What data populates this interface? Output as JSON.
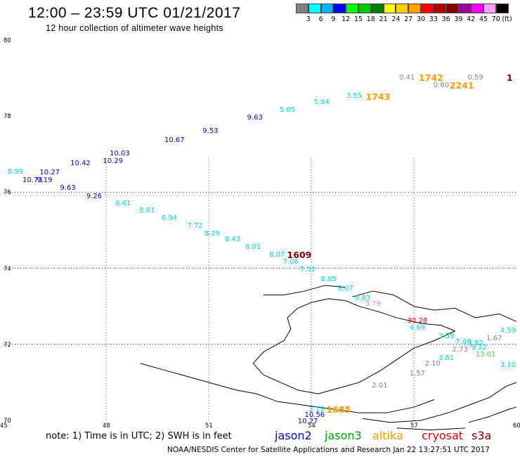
{
  "header": {
    "title": "12:00 – 23:59 UTC 01/21/2017",
    "subtitle": "12 hour collection of altimeter wave heights"
  },
  "legend": {
    "unit": "(ft)",
    "swatches": [
      {
        "color": "#808080",
        "label": "3"
      },
      {
        "color": "#00ffff",
        "label": "6"
      },
      {
        "color": "#00b4ff",
        "label": "9"
      },
      {
        "color": "#0000ff",
        "label": "12"
      },
      {
        "color": "#00ff00",
        "label": "15"
      },
      {
        "color": "#00c800",
        "label": "18"
      },
      {
        "color": "#008000",
        "label": "21"
      },
      {
        "color": "#ffff00",
        "label": "24"
      },
      {
        "color": "#ffd000",
        "label": "27"
      },
      {
        "color": "#ffa000",
        "label": "30"
      },
      {
        "color": "#ff0000",
        "label": "33"
      },
      {
        "color": "#b40000",
        "label": "36"
      },
      {
        "color": "#800000",
        "label": "39"
      },
      {
        "color": "#a000a0",
        "label": "42"
      },
      {
        "color": "#ff00ff",
        "label": "45"
      },
      {
        "color": "#ffa0ff",
        "label": "70"
      },
      {
        "color": "#000000",
        "label": ""
      }
    ]
  },
  "axes": {
    "lon_min": 45,
    "lon_max": 60,
    "lat_min": 70,
    "lat_max": 80,
    "lon_ticks": [
      "45",
      "48",
      "51",
      "54",
      "57",
      "60"
    ],
    "lat_ticks": [
      "80",
      "78",
      "76",
      "74",
      "72",
      "70"
    ],
    "grid_lons": [
      48,
      51,
      54,
      57
    ],
    "grid_lats": [
      76,
      74,
      72
    ]
  },
  "colors": {
    "gray": "#808080",
    "cyan": "#00d0e8",
    "blue": "#0000c8",
    "green": "#40d040",
    "orange": "#ff9900",
    "darkred": "#800000",
    "red": "#e00000",
    "pink": "#ff80c0",
    "coast": "#000000"
  },
  "observations": [
    {
      "text": "0.41",
      "lon": 56.8,
      "lat": 79.0,
      "color": "gray"
    },
    {
      "text": "1742",
      "lon": 57.5,
      "lat": 79.0,
      "color": "orange",
      "big": true
    },
    {
      "text": "0.59",
      "lon": 58.8,
      "lat": 79.0,
      "color": "gray"
    },
    {
      "text": "1",
      "lon": 59.8,
      "lat": 79.0,
      "color": "darkred",
      "big": true
    },
    {
      "text": "0.60",
      "lon": 57.8,
      "lat": 78.8,
      "color": "gray"
    },
    {
      "text": "2241",
      "lon": 58.4,
      "lat": 78.8,
      "color": "orange",
      "big": true
    },
    {
      "text": "3.55",
      "lon": 55.25,
      "lat": 78.52,
      "color": "cyan"
    },
    {
      "text": "1743",
      "lon": 55.95,
      "lat": 78.51,
      "color": "orange",
      "big": true
    },
    {
      "text": "5.94",
      "lon": 54.3,
      "lat": 78.35,
      "color": "cyan"
    },
    {
      "text": "5.05",
      "lon": 53.3,
      "lat": 78.15,
      "color": "cyan"
    },
    {
      "text": "9.63",
      "lon": 52.35,
      "lat": 77.95,
      "color": "blue"
    },
    {
      "text": "9.53",
      "lon": 51.05,
      "lat": 77.6,
      "color": "blue"
    },
    {
      "text": "10.67",
      "lon": 50.0,
      "lat": 77.35,
      "color": "blue"
    },
    {
      "text": "10.29",
      "lon": 48.2,
      "lat": 76.8,
      "color": "blue"
    },
    {
      "text": "10.03",
      "lon": 48.4,
      "lat": 77.0,
      "color": "blue"
    },
    {
      "text": "10.42",
      "lon": 47.25,
      "lat": 76.75,
      "color": "blue"
    },
    {
      "text": "10.27",
      "lon": 46.35,
      "lat": 76.5,
      "color": "blue"
    },
    {
      "text": "8.99",
      "lon": 45.35,
      "lat": 76.52,
      "color": "cyan"
    },
    {
      "text": "10.73",
      "lon": 45.85,
      "lat": 76.3,
      "color": "blue"
    },
    {
      "text": "9.19",
      "lon": 46.2,
      "lat": 76.3,
      "color": "blue"
    },
    {
      "text": "9.63",
      "lon": 46.88,
      "lat": 76.1,
      "color": "blue"
    },
    {
      "text": "9.26",
      "lon": 47.65,
      "lat": 75.88,
      "color": "blue"
    },
    {
      "text": "8.61",
      "lon": 48.5,
      "lat": 75.7,
      "color": "cyan"
    },
    {
      "text": "8.81",
      "lon": 49.2,
      "lat": 75.5,
      "color": "cyan"
    },
    {
      "text": "6.94",
      "lon": 49.85,
      "lat": 75.3,
      "color": "cyan"
    },
    {
      "text": "7.72",
      "lon": 50.6,
      "lat": 75.1,
      "color": "cyan"
    },
    {
      "text": "8.29",
      "lon": 51.1,
      "lat": 74.9,
      "color": "cyan"
    },
    {
      "text": "8.43",
      "lon": 51.7,
      "lat": 74.75,
      "color": "cyan"
    },
    {
      "text": "8.01",
      "lon": 52.3,
      "lat": 74.55,
      "color": "cyan"
    },
    {
      "text": "8.07",
      "lon": 53.0,
      "lat": 74.35,
      "color": "cyan"
    },
    {
      "text": "1609",
      "lon": 53.65,
      "lat": 74.35,
      "color": "darkred",
      "big": true
    },
    {
      "text": "7.06",
      "lon": 53.4,
      "lat": 74.15,
      "color": "cyan"
    },
    {
      "text": "7.51",
      "lon": 53.9,
      "lat": 73.95,
      "color": "cyan"
    },
    {
      "text": "8.85",
      "lon": 54.5,
      "lat": 73.7,
      "color": "cyan"
    },
    {
      "text": "8.07",
      "lon": 55.0,
      "lat": 73.45,
      "color": "cyan"
    },
    {
      "text": "8.83",
      "lon": 55.5,
      "lat": 73.2,
      "color": "cyan"
    },
    {
      "text": "3.79",
      "lon": 55.8,
      "lat": 73.05,
      "color": "pink"
    },
    {
      "text": "30.28",
      "lon": 57.1,
      "lat": 72.6,
      "color": "red"
    },
    {
      "text": "4.69",
      "lon": 57.1,
      "lat": 72.42,
      "color": "cyan"
    },
    {
      "text": "3.59",
      "lon": 57.95,
      "lat": 72.2,
      "color": "cyan"
    },
    {
      "text": "1.67",
      "lon": 59.35,
      "lat": 72.15,
      "color": "gray"
    },
    {
      "text": "4.59",
      "lon": 59.75,
      "lat": 72.35,
      "color": "cyan"
    },
    {
      "text": "7.80",
      "lon": 58.45,
      "lat": 72.05,
      "color": "cyan"
    },
    {
      "text": "2.73",
      "lon": 58.35,
      "lat": 71.85,
      "color": "gray"
    },
    {
      "text": "9.12",
      "lon": 58.9,
      "lat": 71.9,
      "color": "cyan"
    },
    {
      "text": "3.82",
      "lon": 58.8,
      "lat": 72.02,
      "color": "cyan"
    },
    {
      "text": "3.61",
      "lon": 57.95,
      "lat": 71.62,
      "color": "cyan"
    },
    {
      "text": "13.01",
      "lon": 59.1,
      "lat": 71.72,
      "color": "green"
    },
    {
      "text": "2.10",
      "lon": 57.55,
      "lat": 71.47,
      "color": "gray"
    },
    {
      "text": "3.10",
      "lon": 59.75,
      "lat": 71.45,
      "color": "cyan"
    },
    {
      "text": "1.57",
      "lon": 57.1,
      "lat": 71.22,
      "color": "gray"
    },
    {
      "text": "2.01",
      "lon": 56.0,
      "lat": 70.9,
      "color": "gray"
    },
    {
      "text": "1685",
      "lon": 54.8,
      "lat": 70.27,
      "color": "orange",
      "big": true
    },
    {
      "text": "3.19",
      "lon": 54.15,
      "lat": 70.27,
      "color": "cyan"
    },
    {
      "text": "10.56",
      "lon": 54.1,
      "lat": 70.13,
      "color": "blue"
    },
    {
      "text": "10.27",
      "lon": 53.9,
      "lat": 69.96,
      "color": "blue"
    }
  ],
  "footer": {
    "note": "note:  1) Time is in UTC;  2) SWH is in feet",
    "satellites": [
      {
        "label": "jason2",
        "color": "#0000c8"
      },
      {
        "label": "jason3",
        "color": "#00a000"
      },
      {
        "label": "altika",
        "color": "#ff9900"
      },
      {
        "label": "cryosat",
        "color": "#e00000"
      },
      {
        "label": "s3a",
        "color": "#800000"
      }
    ],
    "credit": "NOAA/NESDIS Center for Satellite Applications and Research     Jan 22 13:27:51 UTC 2017"
  }
}
